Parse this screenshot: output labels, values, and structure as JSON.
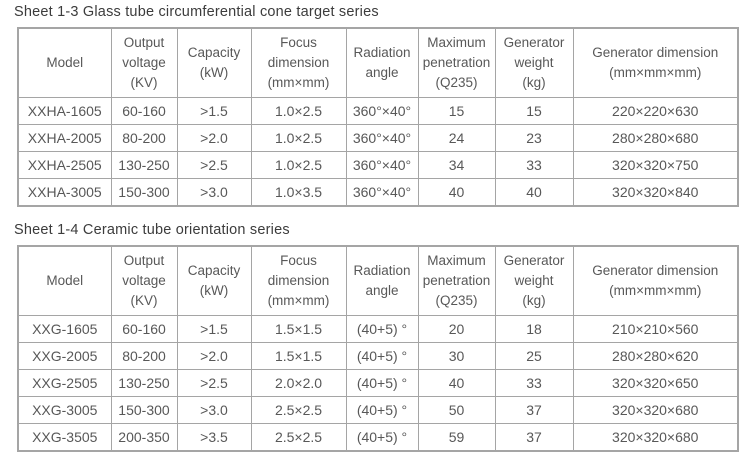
{
  "colors": {
    "table_border": "#a5a5a5",
    "cell_text": "#585858",
    "title_text": "#3c3c3c",
    "background": "#ffffff"
  },
  "tables": [
    {
      "title": "Sheet 1-3 Glass tube circumferential cone target series",
      "columns": [
        {
          "id": "model",
          "label": "Model",
          "width": 93
        },
        {
          "id": "output-voltage",
          "label": "Output\nvoltage\n(KV)",
          "width": 66
        },
        {
          "id": "capacity",
          "label": "Capacity\n(kW)",
          "width": 74
        },
        {
          "id": "focus-dimension",
          "label": "Focus\ndimension\n(mm×mm)",
          "width": 95
        },
        {
          "id": "radiation-angle",
          "label": "Radiation\nangle",
          "width": 72
        },
        {
          "id": "max-penetration",
          "label": "Maximum\npenetration\n(Q235)",
          "width": 77
        },
        {
          "id": "generator-weight",
          "label": "Generator\nweight\n(kg)",
          "width": 78
        },
        {
          "id": "generator-dimension",
          "label": "Generator dimension\n(mm×mm×mm)",
          "width": 165
        }
      ],
      "rows": [
        [
          "XXHA-1605",
          "60-160",
          ">1.5",
          "1.0×2.5",
          "360°×40°",
          "15",
          "15",
          "220×220×630"
        ],
        [
          "XXHA-2005",
          "80-200",
          ">2.0",
          "1.0×2.5",
          "360°×40°",
          "24",
          "23",
          "280×280×680"
        ],
        [
          "XXHA-2505",
          "130-250",
          ">2.5",
          "1.0×2.5",
          "360°×40°",
          "34",
          "33",
          "320×320×750"
        ],
        [
          "XXHA-3005",
          "150-300",
          ">3.0",
          "1.0×3.5",
          "360°×40°",
          "40",
          "40",
          "320×320×840"
        ]
      ]
    },
    {
      "title": "Sheet 1-4 Ceramic tube orientation series",
      "columns": [
        {
          "id": "model",
          "label": "Model",
          "width": 93
        },
        {
          "id": "output-voltage",
          "label": "Output\nvoltage\n(KV)",
          "width": 66
        },
        {
          "id": "capacity",
          "label": "Capacity\n(kW)",
          "width": 74
        },
        {
          "id": "focus-dimension",
          "label": "Focus\ndimension\n(mm×mm)",
          "width": 95
        },
        {
          "id": "radiation-angle",
          "label": "Radiation\nangle",
          "width": 72
        },
        {
          "id": "max-penetration",
          "label": "Maximum\npenetration\n(Q235)",
          "width": 77
        },
        {
          "id": "generator-weight",
          "label": "Generator\nweight\n(kg)",
          "width": 78
        },
        {
          "id": "generator-dimension",
          "label": "Generator dimension\n(mm×mm×mm)",
          "width": 165
        }
      ],
      "rows": [
        [
          "XXG-1605",
          "60-160",
          ">1.5",
          "1.5×1.5",
          "(40+5) °",
          "20",
          "18",
          "210×210×560"
        ],
        [
          "XXG-2005",
          "80-200",
          ">2.0",
          "1.5×1.5",
          "(40+5) °",
          "30",
          "25",
          "280×280×620"
        ],
        [
          "XXG-2505",
          "130-250",
          ">2.5",
          "2.0×2.0",
          "(40+5) °",
          "40",
          "33",
          "320×320×650"
        ],
        [
          "XXG-3005",
          "150-300",
          ">3.0",
          "2.5×2.5",
          "(40+5) °",
          "50",
          "37",
          "320×320×680"
        ],
        [
          "XXG-3505",
          "200-350",
          ">3.5",
          "2.5×2.5",
          "(40+5) °",
          "59",
          "37",
          "320×320×680"
        ]
      ]
    }
  ]
}
